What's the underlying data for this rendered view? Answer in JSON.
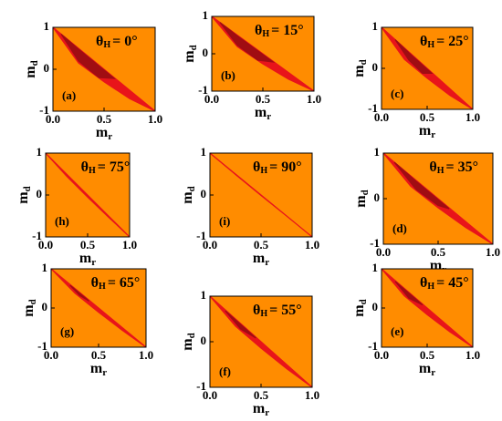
{
  "chart_data": [
    {
      "type": "area",
      "panel": "(a)",
      "title": "θ",
      "title_sub": "H",
      "title_rest": "=  0°",
      "x_label": "m",
      "x_label_sub": "r",
      "y_label": "m",
      "y_label_sub": "d",
      "background": "#ff8c00",
      "xlim": [
        0,
        1
      ],
      "ylim": [
        -1,
        1
      ],
      "xticks": [
        {
          "value": 0,
          "label": "0.0"
        },
        0.5,
        {
          "value": 1,
          "label": "1.0"
        }
      ],
      "yticks": [
        -1,
        0,
        1
      ],
      "series": [
        {
          "color": "#e8141a",
          "x": [
            0,
            0.25,
            0.5,
            0.75,
            1
          ],
          "upper": [
            1,
            0.5,
            0,
            -0.5,
            -1
          ],
          "lower": [
            1,
            0.15,
            -0.3,
            -0.7,
            -1
          ]
        },
        {
          "color": "#a00d12",
          "x": [
            0.08,
            0.25,
            0.45,
            0.6
          ],
          "upper": [
            0.84,
            0.48,
            0.08,
            -0.22
          ],
          "lower": [
            0.84,
            0.2,
            -0.2,
            -0.22
          ]
        }
      ]
    },
    {
      "type": "area",
      "panel": "(b)",
      "title": "θ",
      "title_sub": "H",
      "title_rest": "= 15°",
      "x_label": "m",
      "x_label_sub": "r",
      "y_label": "m",
      "y_label_sub": "d",
      "background": "#ff8c00",
      "xlim": [
        0,
        1
      ],
      "ylim": [
        -1,
        1
      ],
      "xticks": [
        {
          "value": 0,
          "label": "0.0"
        },
        0.5,
        {
          "value": 1,
          "label": "1.0"
        }
      ],
      "yticks": [
        -1,
        0,
        1
      ],
      "series": [
        {
          "color": "#e8141a",
          "x": [
            0,
            0.25,
            0.5,
            0.75,
            1
          ],
          "upper": [
            1,
            0.5,
            0,
            -0.5,
            -1
          ],
          "lower": [
            1,
            0.19,
            -0.27,
            -0.68,
            -1
          ]
        },
        {
          "color": "#a00d12",
          "x": [
            0.08,
            0.25,
            0.45,
            0.6
          ],
          "upper": [
            0.84,
            0.48,
            0.08,
            -0.22
          ],
          "lower": [
            0.84,
            0.23,
            -0.17,
            -0.22
          ]
        }
      ]
    },
    {
      "type": "area",
      "panel": "(c)",
      "title": "θ",
      "title_sub": "H",
      "title_rest": "= 25°",
      "x_label": "m",
      "x_label_sub": "r",
      "y_label": "m",
      "y_label_sub": "d",
      "background": "#ff8c00",
      "xlim": [
        0,
        1
      ],
      "ylim": [
        -1,
        1
      ],
      "xticks": [
        {
          "value": 0,
          "label": "0.0"
        },
        0.5,
        {
          "value": 1,
          "label": "1.0"
        }
      ],
      "yticks": [
        -1,
        0,
        1
      ],
      "series": [
        {
          "color": "#e8141a",
          "x": [
            0,
            0.25,
            0.5,
            0.75,
            1
          ],
          "upper": [
            1,
            0.5,
            0,
            -0.5,
            -1
          ],
          "lower": [
            1,
            0.22,
            -0.24,
            -0.66,
            -1
          ]
        },
        {
          "color": "#a00d12",
          "x": [
            0.15,
            0.3,
            0.45,
            0.55
          ],
          "upper": [
            0.7,
            0.38,
            0.08,
            -0.12
          ],
          "lower": [
            0.7,
            0.2,
            -0.12,
            -0.12
          ]
        }
      ]
    },
    {
      "type": "area",
      "panel": "(h)",
      "title": "θ",
      "title_sub": "H",
      "title_rest": "= 75°",
      "x_label": "m",
      "x_label_sub": "r",
      "y_label": "m",
      "y_label_sub": "d",
      "background": "#ff8c00",
      "xlim": [
        0,
        1
      ],
      "ylim": [
        -1,
        1
      ],
      "xticks": [
        {
          "value": 0,
          "label": "0.0"
        },
        0.5,
        {
          "value": 1,
          "label": "1.0"
        }
      ],
      "yticks": [
        -1,
        0,
        1
      ],
      "series": [
        {
          "color": "#e8141a",
          "x": [
            0,
            0.25,
            0.5,
            0.75,
            1
          ],
          "upper": [
            1,
            0.5,
            0,
            -0.5,
            -1
          ],
          "lower": [
            1,
            0.45,
            -0.05,
            -0.53,
            -1
          ]
        }
      ]
    },
    {
      "type": "area",
      "panel": "(i)",
      "title": "θ",
      "title_sub": "H",
      "title_rest": "= 90°",
      "x_label": "m",
      "x_label_sub": "r",
      "y_label": "m",
      "y_label_sub": "d",
      "background": "#ff8c00",
      "xlim": [
        0,
        1
      ],
      "ylim": [
        -1,
        1
      ],
      "xticks": [
        {
          "value": 0,
          "label": "0.0"
        },
        0.5,
        {
          "value": 1,
          "label": "1.0"
        }
      ],
      "yticks": [
        -1,
        0,
        1
      ],
      "series": [
        {
          "color": "#e8141a",
          "x": [
            0,
            0.25,
            0.5,
            0.75,
            1
          ],
          "upper": [
            1,
            0.5,
            0,
            -0.5,
            -1
          ],
          "lower": [
            1,
            0.49,
            -0.01,
            -0.5,
            -1
          ]
        }
      ]
    },
    {
      "type": "area",
      "panel": "(d)",
      "title": "θ",
      "title_sub": "H",
      "title_rest": "= 35°",
      "x_label": "m",
      "x_label_sub": "r",
      "y_label": "m",
      "y_label_sub": "d",
      "background": "#ff8c00",
      "xlim": [
        0,
        1
      ],
      "ylim": [
        -1,
        1
      ],
      "xticks": [
        {
          "value": 0,
          "label": "0.0"
        },
        0.5,
        {
          "value": 1,
          "label": "1.0"
        }
      ],
      "yticks": [
        -1,
        0,
        1
      ],
      "series": [
        {
          "color": "#e8141a",
          "x": [
            0,
            0.25,
            0.5,
            0.75,
            1
          ],
          "upper": [
            1,
            0.5,
            0,
            -0.5,
            -1
          ],
          "lower": [
            1,
            0.27,
            -0.2,
            -0.63,
            -1
          ]
        },
        {
          "color": "#a00d12",
          "x": [
            0.1,
            0.3,
            0.5,
            0.6
          ],
          "upper": [
            0.8,
            0.38,
            -0.02,
            -0.22
          ],
          "lower": [
            0.8,
            0.2,
            -0.15,
            -0.22
          ]
        }
      ]
    },
    {
      "type": "area",
      "panel": "(g)",
      "title": "θ",
      "title_sub": "H",
      "title_rest": "= 65°",
      "x_label": "m",
      "x_label_sub": "r",
      "y_label": "m",
      "y_label_sub": "d",
      "background": "#ff8c00",
      "xlim": [
        0,
        1
      ],
      "ylim": [
        -1,
        1
      ],
      "xticks": [
        {
          "value": 0,
          "label": "0.0"
        },
        0.5,
        {
          "value": 1,
          "label": "1.0"
        }
      ],
      "yticks": [
        -1,
        0,
        1
      ],
      "series": [
        {
          "color": "#e8141a",
          "x": [
            0,
            0.25,
            0.5,
            0.75,
            1
          ],
          "upper": [
            1,
            0.5,
            0,
            -0.5,
            -1
          ],
          "lower": [
            1,
            0.38,
            -0.11,
            -0.57,
            -1
          ]
        },
        {
          "color": "#a00d12",
          "x": [
            0.2,
            0.3,
            0.4
          ],
          "upper": [
            0.58,
            0.38,
            0.18
          ],
          "lower": [
            0.58,
            0.32,
            0.18
          ]
        }
      ]
    },
    {
      "type": "area",
      "panel": "(f)",
      "title": "θ",
      "title_sub": "H",
      "title_rest": "= 55°",
      "x_label": "m",
      "x_label_sub": "r",
      "y_label": "m",
      "y_label_sub": "d",
      "background": "#ff8c00",
      "xlim": [
        0,
        1
      ],
      "ylim": [
        -1,
        1
      ],
      "xticks": [
        {
          "value": 0,
          "label": "0.0"
        },
        0.5,
        {
          "value": 1,
          "label": "1.0"
        }
      ],
      "yticks": [
        -1,
        0,
        1
      ],
      "series": [
        {
          "color": "#e8141a",
          "x": [
            0,
            0.25,
            0.5,
            0.75,
            1
          ],
          "upper": [
            1,
            0.5,
            0,
            -0.5,
            -1
          ],
          "lower": [
            1,
            0.34,
            -0.14,
            -0.59,
            -1
          ]
        },
        {
          "color": "#a00d12",
          "x": [
            0.15,
            0.3,
            0.45
          ],
          "upper": [
            0.68,
            0.38,
            0.08
          ],
          "lower": [
            0.68,
            0.28,
            0.08
          ]
        }
      ]
    },
    {
      "type": "area",
      "panel": "(e)",
      "title": "θ",
      "title_sub": "H",
      "title_rest": "= 45°",
      "x_label": "m",
      "x_label_sub": "r",
      "y_label": "m",
      "y_label_sub": "d",
      "background": "#ff8c00",
      "xlim": [
        0,
        1
      ],
      "ylim": [
        -1,
        1
      ],
      "xticks": [
        {
          "value": 0,
          "label": "0.0"
        },
        0.5,
        {
          "value": 1,
          "label": "1.0"
        }
      ],
      "yticks": [
        -1,
        0,
        1
      ],
      "series": [
        {
          "color": "#e8141a",
          "x": [
            0,
            0.25,
            0.5,
            0.75,
            1
          ],
          "upper": [
            1,
            0.5,
            0,
            -0.5,
            -1
          ],
          "lower": [
            1,
            0.31,
            -0.17,
            -0.61,
            -1
          ]
        },
        {
          "color": "#a00d12",
          "x": [
            0.15,
            0.3,
            0.45
          ],
          "upper": [
            0.68,
            0.38,
            0.08
          ],
          "lower": [
            0.68,
            0.25,
            0.08
          ]
        }
      ]
    }
  ]
}
